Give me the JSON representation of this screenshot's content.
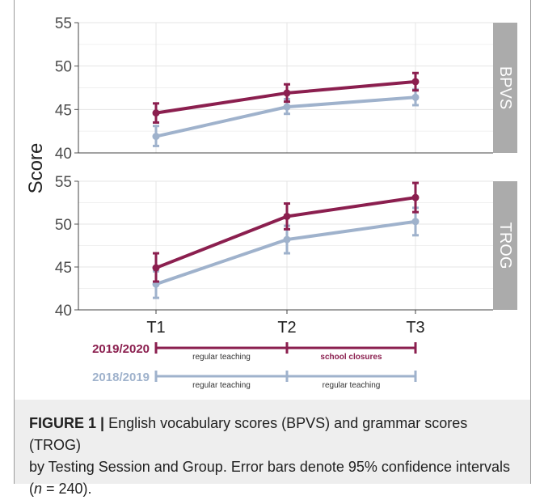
{
  "chart_data": {
    "type": "line",
    "ylabel": "Score",
    "x": [
      "T1",
      "T2",
      "T3"
    ],
    "ylim_top": [
      40,
      55
    ],
    "ylim_bottom": [
      40,
      55
    ],
    "yticks": [
      40,
      45,
      50,
      55
    ],
    "colors": {
      "y2019_2020": "#8b1f4f",
      "y2018_2019": "#9fb2cc",
      "strip": "#ababab",
      "grid": "#e4e4e4"
    },
    "panels": [
      {
        "label": "BPVS",
        "series": [
          {
            "key": "y2019_2020",
            "values": [
              44.6,
              46.9,
              48.2
            ],
            "lower": [
              43.5,
              45.9,
              47.2
            ],
            "upper": [
              45.7,
              47.9,
              49.2
            ]
          },
          {
            "key": "y2018_2019",
            "values": [
              41.9,
              45.3,
              46.4
            ],
            "lower": [
              40.8,
              44.5,
              45.5
            ],
            "upper": [
              43.1,
              46.2,
              47.3
            ]
          }
        ]
      },
      {
        "label": "TROG",
        "series": [
          {
            "key": "y2019_2020",
            "values": [
              44.9,
              50.9,
              53.1
            ],
            "lower": [
              43.3,
              49.4,
              51.4
            ],
            "upper": [
              46.6,
              52.4,
              54.8
            ]
          },
          {
            "key": "y2018_2019",
            "values": [
              43.0,
              48.2,
              50.3
            ],
            "lower": [
              41.4,
              46.6,
              48.7
            ],
            "upper": [
              44.5,
              49.8,
              51.9
            ]
          }
        ]
      }
    ]
  },
  "timeline": [
    {
      "key": "y2019_2020",
      "label": "2019/2020",
      "first": "regular teaching",
      "second": "school closures"
    },
    {
      "key": "y2018_2019",
      "label": "2018/2019",
      "first": "regular teaching",
      "second": "regular teaching"
    }
  ],
  "caption": {
    "fig": "FIGURE 1 |",
    "line1": " English vocabulary scores (BPVS) and grammar scores (TROG)",
    "line2": "by Testing Session and Group. Error bars denote 95% confidence intervals",
    "line3_pre": "(",
    "n": "n",
    "line3_post": " = 240)."
  }
}
